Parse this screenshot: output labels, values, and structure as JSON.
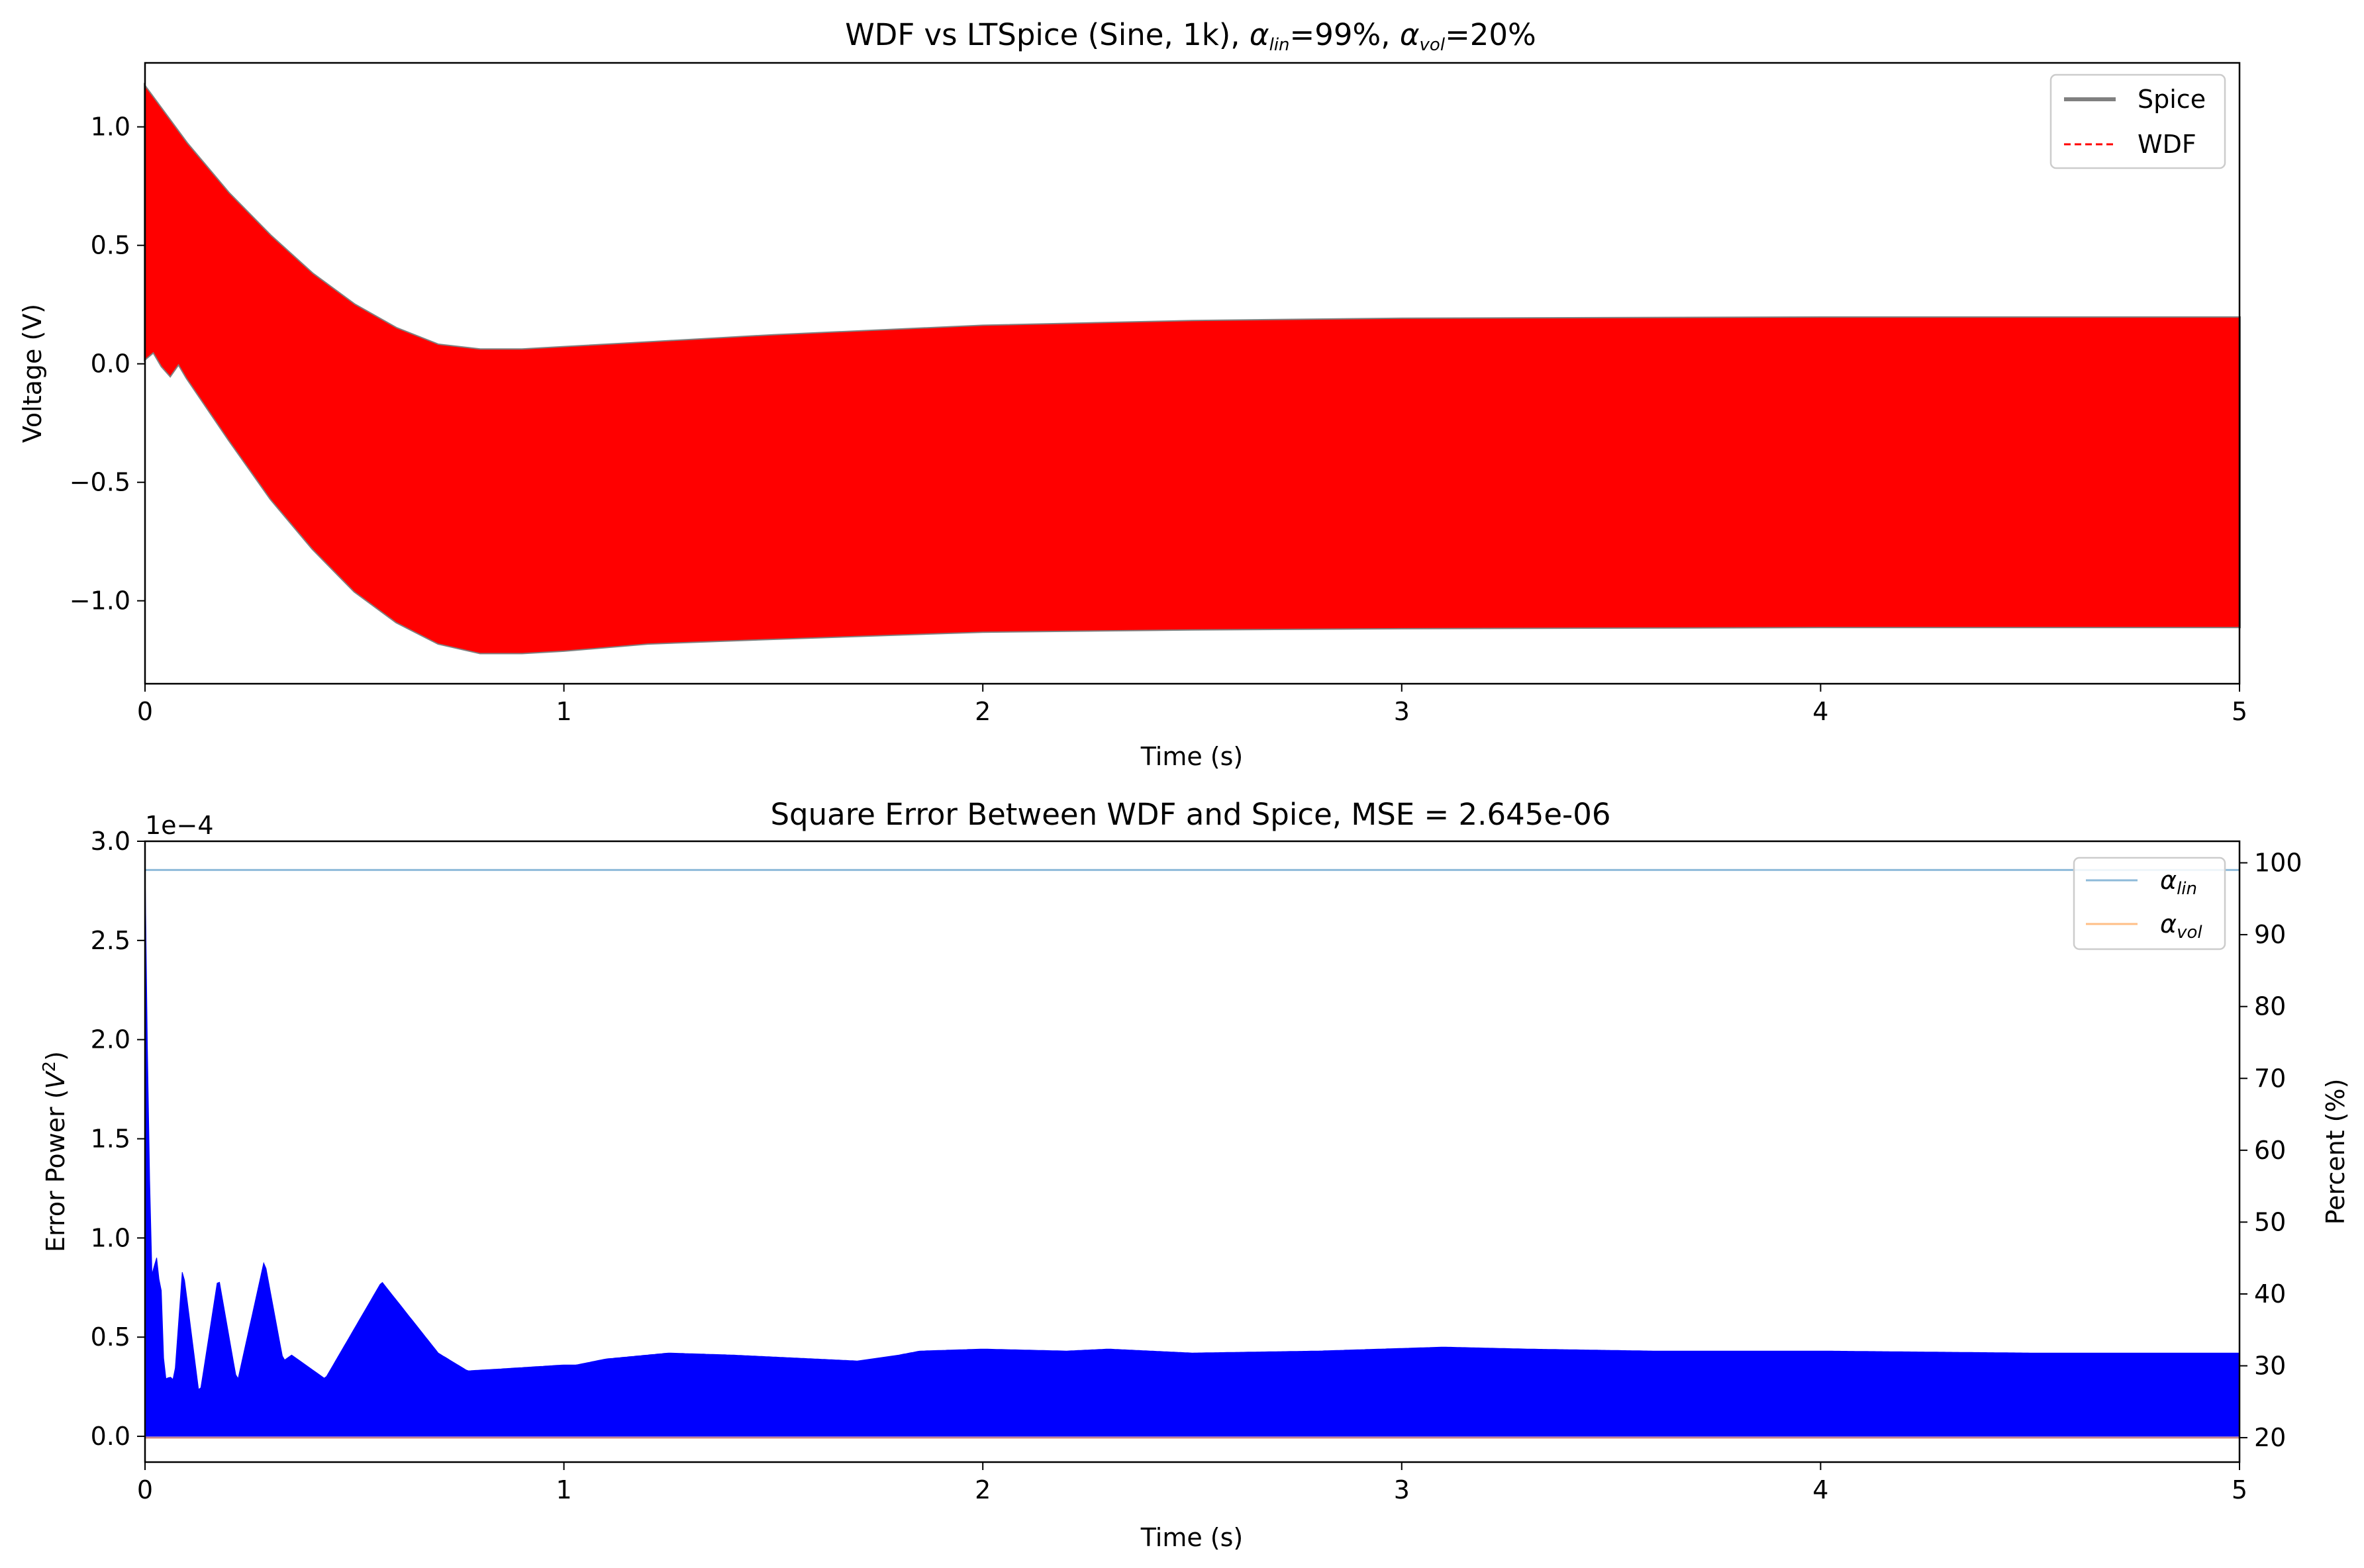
{
  "chart_data": [
    {
      "type": "line",
      "title": {
        "pre": "WDF vs LTSpice (Sine, 1k), ",
        "a1_sub": "lin",
        "mid": "=99%, ",
        "a2_sub": "vol",
        "post": "=20%"
      },
      "xlabel": "Time (s)",
      "ylabel": "Voltage (V)",
      "xlim": [
        0,
        5
      ],
      "ylim": [
        -1.35,
        1.27
      ],
      "xticks": [
        0,
        1,
        2,
        3,
        4,
        5
      ],
      "xtick_labels": [
        "0",
        "1",
        "2",
        "3",
        "4",
        "5"
      ],
      "yticks": [
        1.0,
        0.5,
        0.0,
        -0.5,
        -1.0
      ],
      "ytick_labels": [
        "1.0",
        "0.5",
        "0.0",
        "−0.5",
        "−1.0"
      ],
      "grid": false,
      "legend": {
        "placement": "top-right",
        "entries": [
          "Spice",
          "WDF"
        ]
      },
      "series": [
        {
          "name": "Spice",
          "color": "#808080",
          "style": "solid",
          "upper_envelope": {
            "x": [
              0,
              0.1,
              0.2,
              0.3,
              0.4,
              0.5,
              0.6,
              0.7,
              0.8,
              0.9,
              1.0,
              1.2,
              1.5,
              2.0,
              2.5,
              3.0,
              4.0,
              5.0
            ],
            "y": [
              1.17,
              0.93,
              0.72,
              0.54,
              0.38,
              0.25,
              0.15,
              0.08,
              0.06,
              0.06,
              0.07,
              0.09,
              0.12,
              0.16,
              0.18,
              0.19,
              0.195,
              0.195
            ]
          },
          "lower_envelope": {
            "x": [
              0,
              0.02,
              0.04,
              0.06,
              0.08,
              0.1,
              0.2,
              0.3,
              0.4,
              0.5,
              0.6,
              0.7,
              0.8,
              0.9,
              1.0,
              1.2,
              1.5,
              2.0,
              2.5,
              3.0,
              4.0,
              5.0
            ],
            "y": [
              0.02,
              0.05,
              -0.01,
              -0.05,
              0.0,
              -0.06,
              -0.32,
              -0.57,
              -0.78,
              -0.96,
              -1.09,
              -1.18,
              -1.22,
              -1.22,
              -1.21,
              -1.18,
              -1.16,
              -1.13,
              -1.12,
              -1.115,
              -1.11,
              -1.11
            ]
          }
        },
        {
          "name": "WDF",
          "color": "#ff0000",
          "style": "dashed",
          "upper_envelope": {
            "x": [
              0,
              0.1,
              0.2,
              0.3,
              0.4,
              0.5,
              0.6,
              0.7,
              0.8,
              0.9,
              1.0,
              1.2,
              1.5,
              2.0,
              2.5,
              3.0,
              4.0,
              5.0
            ],
            "y": [
              1.17,
              0.93,
              0.72,
              0.54,
              0.38,
              0.25,
              0.15,
              0.08,
              0.06,
              0.06,
              0.07,
              0.09,
              0.12,
              0.16,
              0.18,
              0.19,
              0.195,
              0.195
            ]
          },
          "lower_envelope": {
            "x": [
              0,
              0.02,
              0.04,
              0.06,
              0.08,
              0.1,
              0.2,
              0.3,
              0.4,
              0.5,
              0.6,
              0.7,
              0.8,
              0.9,
              1.0,
              1.2,
              1.5,
              2.0,
              2.5,
              3.0,
              4.0,
              5.0
            ],
            "y": [
              0.02,
              0.05,
              -0.01,
              -0.05,
              0.0,
              -0.06,
              -0.32,
              -0.57,
              -0.78,
              -0.96,
              -1.09,
              -1.18,
              -1.22,
              -1.22,
              -1.21,
              -1.18,
              -1.16,
              -1.13,
              -1.12,
              -1.115,
              -1.11,
              -1.11
            ]
          }
        }
      ]
    },
    {
      "type": "area",
      "title": "Square Error Between WDF and Spice, MSE = 2.645e-06",
      "xlabel": "Time (s)",
      "ylabel": {
        "pre": "Error Power (",
        "base": "V",
        "sup": "2",
        "post": ")"
      },
      "y2label": "Percent (%)",
      "offset_text": "1e−4",
      "xlim": [
        0,
        5
      ],
      "ylim": [
        -0.13,
        3.0
      ],
      "y2lim": [
        16.6,
        103.0
      ],
      "xticks": [
        0,
        1,
        2,
        3,
        4,
        5
      ],
      "xtick_labels": [
        "0",
        "1",
        "2",
        "3",
        "4",
        "5"
      ],
      "yticks": [
        3.0,
        2.5,
        2.0,
        1.5,
        1.0,
        0.5,
        0.0
      ],
      "ytick_labels": [
        "3.0",
        "2.5",
        "2.0",
        "1.5",
        "1.0",
        "0.5",
        "0.0"
      ],
      "y2ticks": [
        100,
        90,
        80,
        70,
        60,
        50,
        40,
        30,
        20
      ],
      "y2tick_labels": [
        "100",
        "90",
        "80",
        "70",
        "60",
        "50",
        "40",
        "30",
        "20"
      ],
      "grid": false,
      "legend": {
        "placement": "top-right",
        "entries": [
          "lin",
          "vol"
        ]
      },
      "series": [
        {
          "name": "squared error",
          "color": "#0000ff",
          "axis": "left",
          "upper_envelope": {
            "x": [
              0,
              0.005,
              0.01,
              0.015,
              0.02,
              0.025,
              0.03,
              0.035,
              0.04,
              0.045,
              0.05,
              0.06,
              0.07,
              0.09,
              0.13,
              0.175,
              0.22,
              0.285,
              0.33,
              0.35,
              0.43,
              0.565,
              0.7,
              0.77,
              0.85,
              1.0,
              1.03,
              1.1,
              1.25,
              1.4,
              1.6,
              1.7,
              1.8,
              1.85,
              2.0,
              2.2,
              2.3,
              2.5,
              2.8,
              3.1,
              3.3,
              3.6,
              4.0,
              4.5,
              5.0
            ],
            "y": [
              2.9,
              2.05,
              1.45,
              0.75,
              0.95,
              0.75,
              1.02,
              0.68,
              0.75,
              0.35,
              0.29,
              0.3,
              0.28,
              0.86,
              0.2,
              0.81,
              0.27,
              0.89,
              0.38,
              0.41,
              0.29,
              0.78,
              0.42,
              0.33,
              0.34,
              0.36,
              0.36,
              0.39,
              0.42,
              0.41,
              0.39,
              0.38,
              0.41,
              0.43,
              0.44,
              0.43,
              0.44,
              0.42,
              0.43,
              0.45,
              0.44,
              0.43,
              0.43,
              0.42,
              0.42
            ]
          },
          "lower_envelope": 0.0
        },
        {
          "name": "lin",
          "color": "#8ebad9",
          "axis": "right",
          "value": 99
        },
        {
          "name": "vol",
          "color": "#ffbf86",
          "axis": "right",
          "value": 20
        }
      ]
    }
  ]
}
